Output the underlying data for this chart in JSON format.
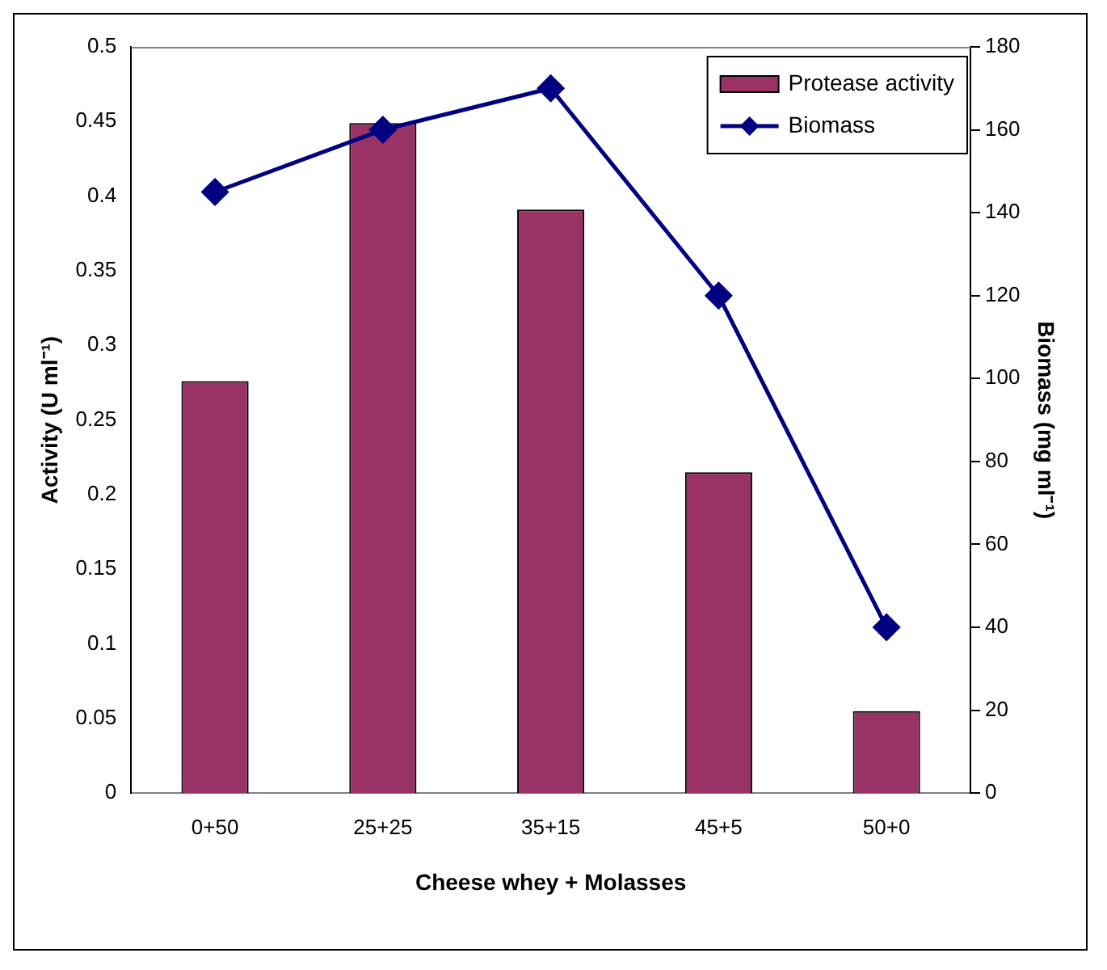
{
  "chart_data": {
    "type": "bar",
    "xlabel": "Cheese whey + Molasses",
    "ylabel": "Activity (U ml⁻¹)",
    "y2label": "Biomass (mg ml⁻¹)",
    "categories": [
      "0+50",
      "25+25",
      "35+15",
      "45+5",
      "50+0"
    ],
    "series": [
      {
        "name": "Protease activity",
        "color": "#993366",
        "values": [
          0.276,
          0.449,
          0.391,
          0.215,
          0.055
        ]
      },
      {
        "name": "Biomass",
        "type": "line",
        "axis": "y2",
        "color": "#000080",
        "marker": "diamond",
        "values": [
          145,
          160,
          170,
          120,
          40
        ]
      }
    ],
    "ylim": [
      0,
      0.5
    ],
    "yticks": [
      0,
      0.05,
      0.1,
      0.15,
      0.2,
      0.25,
      0.3,
      0.35,
      0.4,
      0.45,
      0.5
    ],
    "y2lim": [
      0,
      180
    ],
    "y2ticks": [
      0,
      20,
      40,
      60,
      80,
      100,
      120,
      140,
      160,
      180
    ],
    "grid": false,
    "legend": "top right"
  }
}
